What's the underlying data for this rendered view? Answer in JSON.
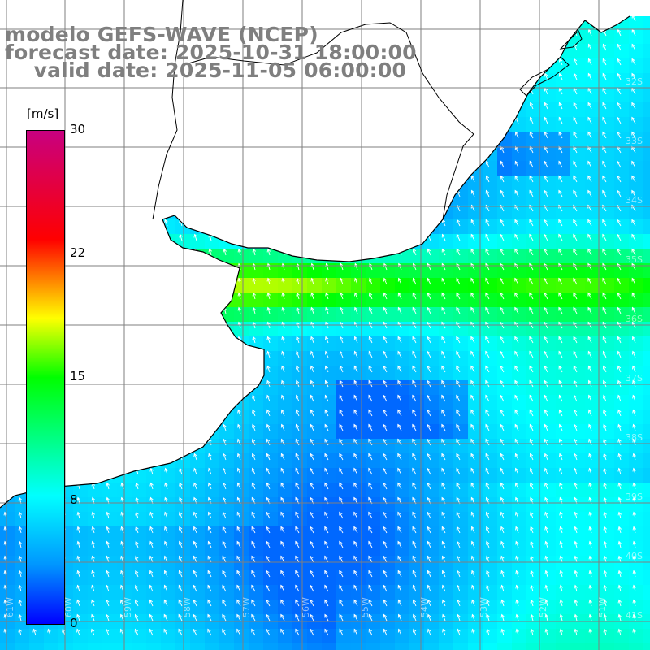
{
  "title": {
    "line1": "modelo GEFS-WAVE (NCEP)",
    "line2": "forecast date: 2025-10-31 18:00:00",
    "line3": "    valid date: 2025-11-05 06:00:00"
  },
  "colorbar": {
    "unit": "[m/s]",
    "min": 0,
    "max": 30,
    "ticks": [
      "30",
      "22",
      "15",
      "8",
      "0"
    ],
    "colors": [
      "#0000ff",
      "#0096ff",
      "#00ffff",
      "#00ff00",
      "#ffff00",
      "#ff0000",
      "#c80080"
    ]
  },
  "map": {
    "region": "Rio de la Plata / South Atlantic",
    "lat_labels": [
      "32S",
      "33S",
      "34S",
      "35S",
      "36S",
      "37S",
      "38S",
      "39S",
      "40S",
      "41S"
    ],
    "lon_labels": [
      "61W",
      "60W",
      "59W",
      "58W",
      "57W",
      "56W",
      "55W",
      "54W",
      "53W",
      "52W",
      "51W"
    ],
    "field": "wind speed with direction arrows",
    "arrow_direction": "towards north-west",
    "grid": true,
    "coastline_color": "#000000",
    "gridline_color": "#7f7f7f"
  }
}
